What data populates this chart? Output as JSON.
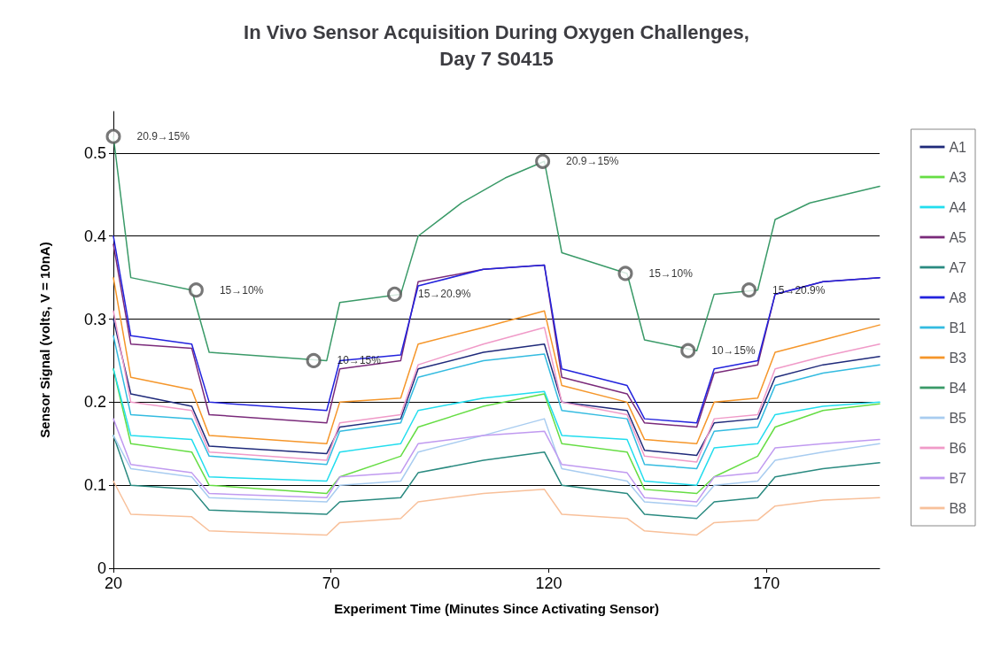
{
  "chart_data": {
    "type": "line",
    "title": "In Vivo Sensor Acquisition During Oxygen Challenges,\nDay 7 S0415",
    "xlabel": "Experiment Time (Minutes Since Activating Sensor)",
    "ylabel": "Sensor Signal (volts, V = 10nA)",
    "xlim": [
      20,
      196
    ],
    "xticks": [
      20,
      70,
      120,
      170
    ],
    "ylim": [
      0,
      0.55
    ],
    "yticks": [
      0,
      0.1,
      0.2,
      0.3,
      0.4,
      0.5
    ],
    "grid": "y",
    "legend": "right",
    "marker": "none",
    "line_style": "solid",
    "x": [
      20,
      24,
      38,
      42,
      69,
      72,
      86,
      90,
      105,
      119,
      123,
      138,
      142,
      154,
      158,
      168,
      172,
      183,
      196
    ],
    "series": [
      {
        "name": "A1",
        "color": "#1f2a7a",
        "values": [
          0.3,
          0.21,
          0.195,
          0.147,
          0.138,
          0.17,
          0.18,
          0.24,
          0.26,
          0.27,
          0.2,
          0.19,
          0.142,
          0.136,
          0.175,
          0.18,
          0.23,
          0.245,
          0.255
        ]
      },
      {
        "name": "A3",
        "color": "#66dd44",
        "values": [
          0.24,
          0.15,
          0.14,
          0.1,
          0.09,
          0.11,
          0.135,
          0.17,
          0.195,
          0.21,
          0.15,
          0.14,
          0.095,
          0.09,
          0.11,
          0.135,
          0.17,
          0.19,
          0.198
        ]
      },
      {
        "name": "A4",
        "color": "#22ddee",
        "values": [
          0.24,
          0.16,
          0.155,
          0.11,
          0.105,
          0.14,
          0.15,
          0.19,
          0.205,
          0.213,
          0.16,
          0.155,
          0.105,
          0.1,
          0.145,
          0.15,
          0.185,
          0.195,
          0.2
        ]
      },
      {
        "name": "A5",
        "color": "#7a2a7a",
        "values": [
          0.39,
          0.27,
          0.265,
          0.185,
          0.175,
          0.24,
          0.25,
          0.345,
          0.36,
          0.365,
          0.23,
          0.21,
          0.175,
          0.17,
          0.235,
          0.245,
          0.33,
          0.345,
          0.35
        ]
      },
      {
        "name": "A7",
        "color": "#2a8a80",
        "values": [
          0.16,
          0.1,
          0.095,
          0.07,
          0.065,
          0.08,
          0.085,
          0.115,
          0.13,
          0.14,
          0.1,
          0.09,
          0.065,
          0.06,
          0.08,
          0.085,
          0.11,
          0.12,
          0.127
        ]
      },
      {
        "name": "A8",
        "color": "#2222dd",
        "values": [
          0.4,
          0.28,
          0.27,
          0.2,
          0.19,
          0.25,
          0.257,
          0.34,
          0.36,
          0.365,
          0.24,
          0.22,
          0.18,
          0.175,
          0.24,
          0.25,
          0.33,
          0.345,
          0.35
        ]
      },
      {
        "name": "B1",
        "color": "#33bbe0",
        "values": [
          0.28,
          0.185,
          0.18,
          0.135,
          0.125,
          0.165,
          0.175,
          0.23,
          0.25,
          0.258,
          0.19,
          0.18,
          0.125,
          0.12,
          0.165,
          0.17,
          0.22,
          0.235,
          0.245
        ]
      },
      {
        "name": "B3",
        "color": "#f5962a",
        "values": [
          0.35,
          0.23,
          0.215,
          0.16,
          0.15,
          0.2,
          0.205,
          0.27,
          0.29,
          0.31,
          0.22,
          0.2,
          0.155,
          0.15,
          0.2,
          0.205,
          0.26,
          0.275,
          0.293
        ]
      },
      {
        "name": "B4",
        "color": "#3a9a68",
        "x": [
          20,
          24,
          38,
          42,
          69,
          72,
          86,
          90,
          100,
          110,
          119,
          123,
          138,
          142,
          154,
          158,
          168,
          172,
          180,
          196
        ],
        "values": [
          0.52,
          0.35,
          0.335,
          0.26,
          0.25,
          0.32,
          0.33,
          0.4,
          0.44,
          0.47,
          0.49,
          0.38,
          0.355,
          0.275,
          0.262,
          0.33,
          0.335,
          0.42,
          0.44,
          0.46
        ]
      },
      {
        "name": "B5",
        "color": "#a8ccf0",
        "values": [
          0.16,
          0.12,
          0.11,
          0.085,
          0.08,
          0.1,
          0.105,
          0.14,
          0.16,
          0.18,
          0.12,
          0.105,
          0.08,
          0.075,
          0.1,
          0.105,
          0.13,
          0.14,
          0.15
        ]
      },
      {
        "name": "B6",
        "color": "#f09ac8",
        "values": [
          0.31,
          0.2,
          0.19,
          0.14,
          0.13,
          0.175,
          0.185,
          0.245,
          0.27,
          0.29,
          0.2,
          0.185,
          0.135,
          0.128,
          0.18,
          0.185,
          0.24,
          0.255,
          0.27
        ]
      },
      {
        "name": "B7",
        "color": "#c09af0",
        "values": [
          0.18,
          0.125,
          0.115,
          0.09,
          0.085,
          0.11,
          0.115,
          0.15,
          0.16,
          0.165,
          0.125,
          0.115,
          0.085,
          0.08,
          0.11,
          0.115,
          0.145,
          0.15,
          0.155
        ]
      },
      {
        "name": "B8",
        "color": "#f8c09a",
        "values": [
          0.105,
          0.065,
          0.062,
          0.045,
          0.04,
          0.055,
          0.06,
          0.08,
          0.09,
          0.095,
          0.065,
          0.06,
          0.045,
          0.04,
          0.055,
          0.058,
          0.075,
          0.082,
          0.085
        ]
      }
    ],
    "annotations": [
      {
        "text": "20.9→15%",
        "x": 20,
        "y": 0.52
      },
      {
        "text": "15→10%",
        "x": 39,
        "y": 0.335
      },
      {
        "text": "10→15%",
        "x": 66,
        "y": 0.25
      },
      {
        "text": "15→20.9%",
        "x": 84.6,
        "y": 0.33
      },
      {
        "text": "20.9→15%",
        "x": 118.6,
        "y": 0.49
      },
      {
        "text": "15→10%",
        "x": 137.6,
        "y": 0.355
      },
      {
        "text": "10→15%",
        "x": 152,
        "y": 0.262
      },
      {
        "text": "15→20.9%",
        "x": 166,
        "y": 0.335
      }
    ]
  }
}
